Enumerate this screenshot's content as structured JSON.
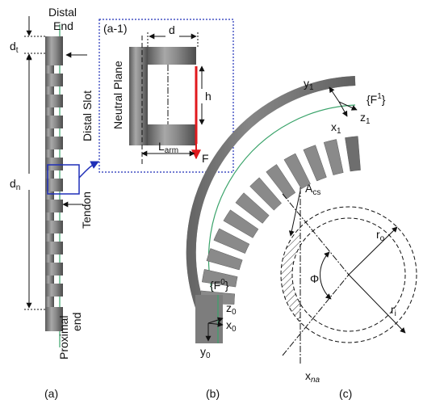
{
  "panel_a": {
    "distal_end": [
      "Distal",
      "End"
    ],
    "d_t": "d",
    "d_t_sub": "t",
    "distal_slot": "Distal Slot",
    "d_n": "d",
    "d_n_sub": "n",
    "tendon": "Tendon",
    "proximal_end": [
      "Proximal",
      "end"
    ],
    "caption": "(a)"
  },
  "inset": {
    "tag": "(a-1)",
    "neutral_plane": "Neutral Plane",
    "d": "d",
    "h": "h",
    "l_arm": "L",
    "l_arm_sub": "arm",
    "force": "F"
  },
  "panel_b": {
    "y1": "y",
    "y1_sub": "1",
    "frame1_pre": "{F",
    "frame1_sup": "1",
    "frame1_post": "}",
    "x1": "x",
    "x1_sub": "1",
    "z1": "z",
    "z1_sub": "1",
    "frame0_pre": "{F",
    "frame0_sup": "0",
    "frame0_post": "}",
    "z0": "z",
    "z0_sub": "0",
    "x0": "x",
    "x0_sub": "0",
    "y0": "y",
    "y0_sub": "0",
    "caption": "(b)"
  },
  "panel_c": {
    "a_cs": "A",
    "a_cs_sub": "cs",
    "r_o": "r",
    "r_o_sub": "o",
    "phi": "Φ",
    "r_i": "r",
    "r_i_sub": "i",
    "x_na": "x",
    "x_na_sub": "na",
    "caption": "(c)"
  },
  "colors": {
    "tube": "#7d7d7d",
    "tube_dark": "#4a4a4a",
    "tendon": "#3aa36a",
    "force": "#e0191d",
    "callout": "#1f2fb8"
  }
}
